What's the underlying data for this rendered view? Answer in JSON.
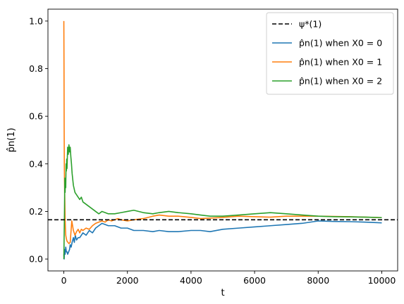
{
  "chart_data": {
    "type": "line",
    "xlabel": "t",
    "ylabel": "p̂n(1)",
    "xlim": [
      -500,
      10500
    ],
    "ylim": [
      -0.05,
      1.05
    ],
    "xticks": [
      0,
      2000,
      4000,
      6000,
      8000,
      10000
    ],
    "xtick_labels": [
      "0",
      "2000",
      "4000",
      "6000",
      "8000",
      "10000"
    ],
    "yticks": [
      0.0,
      0.2,
      0.4,
      0.6,
      0.8,
      1.0
    ],
    "ytick_labels": [
      "0.0",
      "0.2",
      "0.4",
      "0.6",
      "0.8",
      "1.0"
    ],
    "grid": false,
    "legend_position": "top-right",
    "reference_line": {
      "name": "ψ*(1)",
      "y": 0.165,
      "color": "#000000",
      "style": "dashed"
    },
    "series": [
      {
        "name": "p̂n(1) when X0 = 0",
        "color": "#1f77b4",
        "x": [
          0,
          10,
          25,
          40,
          60,
          80,
          100,
          120,
          150,
          180,
          200,
          230,
          260,
          300,
          330,
          360,
          400,
          450,
          500,
          600,
          700,
          800,
          900,
          1000,
          1100,
          1200,
          1400,
          1600,
          1800,
          2000,
          2200,
          2500,
          2800,
          3000,
          3300,
          3600,
          4000,
          4300,
          4600,
          5000,
          5500,
          6000,
          6500,
          7000,
          7500,
          8000,
          8500,
          9000,
          9500,
          10000
        ],
        "y": [
          0.02,
          0.0,
          0.04,
          0.02,
          0.05,
          0.03,
          0.03,
          0.02,
          0.03,
          0.04,
          0.06,
          0.05,
          0.07,
          0.09,
          0.07,
          0.1,
          0.08,
          0.09,
          0.09,
          0.11,
          0.1,
          0.12,
          0.11,
          0.13,
          0.14,
          0.15,
          0.14,
          0.14,
          0.13,
          0.13,
          0.12,
          0.12,
          0.115,
          0.12,
          0.115,
          0.115,
          0.12,
          0.12,
          0.115,
          0.125,
          0.13,
          0.135,
          0.14,
          0.145,
          0.15,
          0.16,
          0.158,
          0.157,
          0.155,
          0.152
        ]
      },
      {
        "name": "p̂n(1) when X0 = 1",
        "color": "#ff7f0e",
        "x": [
          0,
          5,
          10,
          15,
          20,
          30,
          40,
          50,
          60,
          80,
          100,
          130,
          160,
          200,
          250,
          300,
          350,
          400,
          450,
          500,
          550,
          600,
          700,
          800,
          900,
          1000,
          1100,
          1200,
          1300,
          1400,
          1500,
          1600,
          1700,
          1800,
          2000,
          2200,
          2500,
          2800,
          3000,
          3300,
          3600,
          4000,
          4300,
          4600,
          5000,
          5500,
          6000,
          6500,
          7000,
          7500,
          8000,
          8500,
          9000,
          9500,
          10000
        ],
        "y": [
          1.0,
          0.82,
          0.55,
          0.4,
          0.33,
          0.25,
          0.17,
          0.13,
          0.1,
          0.085,
          0.075,
          0.07,
          0.065,
          0.07,
          0.16,
          0.12,
          0.1,
          0.115,
          0.125,
          0.11,
          0.125,
          0.12,
          0.13,
          0.125,
          0.14,
          0.15,
          0.155,
          0.16,
          0.155,
          0.165,
          0.16,
          0.165,
          0.17,
          0.165,
          0.16,
          0.165,
          0.17,
          0.18,
          0.185,
          0.18,
          0.18,
          0.175,
          0.17,
          0.172,
          0.175,
          0.18,
          0.178,
          0.176,
          0.18,
          0.18,
          0.18,
          0.179,
          0.178,
          0.176,
          0.174
        ]
      },
      {
        "name": "p̂n(1) when X0 = 2",
        "color": "#2ca02c",
        "x": [
          0,
          10,
          20,
          30,
          40,
          50,
          60,
          70,
          80,
          90,
          100,
          120,
          140,
          160,
          180,
          200,
          220,
          240,
          260,
          300,
          350,
          400,
          450,
          500,
          550,
          600,
          700,
          800,
          900,
          1000,
          1100,
          1200,
          1300,
          1400,
          1600,
          1800,
          2000,
          2200,
          2500,
          2800,
          3000,
          3300,
          3600,
          4000,
          4300,
          4600,
          5000,
          5500,
          6000,
          6500,
          7000,
          7500,
          8000,
          8500,
          9000,
          9500,
          10000
        ],
        "y": [
          0.0,
          0.1,
          0.2,
          0.34,
          0.28,
          0.33,
          0.3,
          0.4,
          0.37,
          0.42,
          0.38,
          0.47,
          0.44,
          0.48,
          0.45,
          0.47,
          0.43,
          0.4,
          0.36,
          0.31,
          0.28,
          0.27,
          0.26,
          0.25,
          0.26,
          0.24,
          0.23,
          0.22,
          0.21,
          0.2,
          0.19,
          0.2,
          0.195,
          0.19,
          0.19,
          0.195,
          0.2,
          0.205,
          0.195,
          0.19,
          0.195,
          0.2,
          0.195,
          0.19,
          0.185,
          0.18,
          0.18,
          0.185,
          0.19,
          0.195,
          0.19,
          0.185,
          0.18,
          0.178,
          0.177,
          0.176,
          0.174
        ]
      }
    ]
  }
}
